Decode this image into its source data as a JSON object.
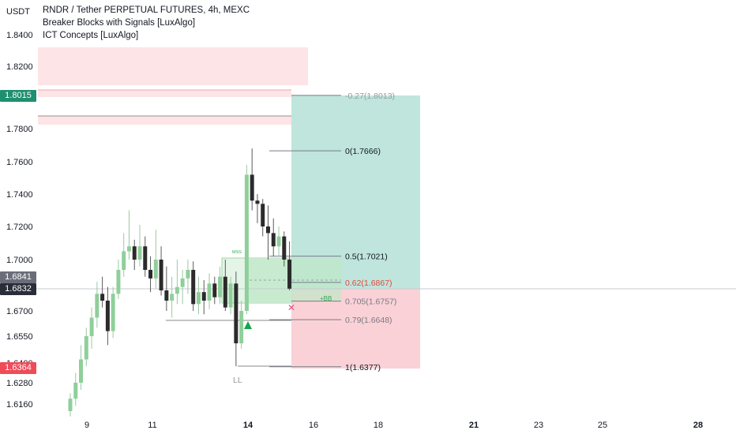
{
  "header": {
    "currency": "USDT",
    "title": "RNDR / Tether PERPETUAL FUTURES, 4h, MEXC",
    "indicators": [
      "Breaker Blocks with Signals [LuxAlgo]",
      "ICT Concepts [LuxAlgo]"
    ]
  },
  "price_axis": {
    "ticks": [
      "1.8400",
      "1.8200",
      "1.7800",
      "1.7600",
      "1.7400",
      "1.7200",
      "1.7000",
      "1.6700",
      "1.6550",
      "1.6400",
      "1.6280",
      "1.6160"
    ],
    "tags": [
      {
        "label": "1.8015",
        "color": "#1e8f6f"
      },
      {
        "label": "1.6841",
        "color": "#6b6e78"
      },
      {
        "label": "1.6832",
        "color": "#2a2e39"
      },
      {
        "label": "1.6364",
        "color": "#ef4b59"
      }
    ]
  },
  "time_axis": {
    "labels": [
      "9",
      "11",
      "14",
      "16",
      "18",
      "21",
      "23",
      "25",
      "28"
    ],
    "bold": [
      "14",
      "21",
      "28"
    ]
  },
  "annotations": {
    "ll": "LL",
    "bb": "+BB",
    "mss": "MSS"
  },
  "fib_levels": [
    {
      "label": "-0.27(1.8013)",
      "price": 1.8013,
      "color": "#9598a1"
    },
    {
      "label": "0(1.7666)",
      "price": 1.7666,
      "color": "#131722"
    },
    {
      "label": "0.5(1.7021)",
      "price": 1.7021,
      "color": "#131722"
    },
    {
      "label": "0.62(1.6867)",
      "price": 1.6867,
      "color": "#e04a3a"
    },
    {
      "label": "0.705(1.6757)",
      "price": 1.6757,
      "color": "#787b86"
    },
    {
      "label": "0.79(1.6648)",
      "price": 1.6648,
      "color": "#787b86"
    },
    {
      "label": "1(1.6377)",
      "price": 1.6377,
      "color": "#131722"
    }
  ],
  "colors": {
    "bull": "#8fcf9a",
    "bear": "#2b2b2b",
    "target_zone": "#bfe5dc",
    "stop_zone": "#fad1d6",
    "breaker_zone": "#fde4e6",
    "bb_zone": "#c8ebcf"
  },
  "chart_data": {
    "type": "candlestick",
    "symbol": "RNDR / Tether PERPETUAL FUTURES",
    "interval": "4h",
    "exchange": "MEXC",
    "ylim": [
      1.605,
      1.848
    ],
    "candles": [
      {
        "o": 1.612,
        "h": 1.622,
        "l": 1.609,
        "c": 1.619
      },
      {
        "o": 1.619,
        "h": 1.634,
        "l": 1.615,
        "c": 1.628
      },
      {
        "o": 1.628,
        "h": 1.65,
        "l": 1.624,
        "c": 1.642
      },
      {
        "o": 1.642,
        "h": 1.66,
        "l": 1.638,
        "c": 1.655
      },
      {
        "o": 1.655,
        "h": 1.672,
        "l": 1.648,
        "c": 1.666
      },
      {
        "o": 1.666,
        "h": 1.687,
        "l": 1.66,
        "c": 1.68
      },
      {
        "o": 1.68,
        "h": 1.69,
        "l": 1.672,
        "c": 1.676
      },
      {
        "o": 1.676,
        "h": 1.684,
        "l": 1.65,
        "c": 1.658
      },
      {
        "o": 1.658,
        "h": 1.684,
        "l": 1.654,
        "c": 1.68
      },
      {
        "o": 1.68,
        "h": 1.7,
        "l": 1.677,
        "c": 1.694
      },
      {
        "o": 1.694,
        "h": 1.716,
        "l": 1.69,
        "c": 1.705
      },
      {
        "o": 1.705,
        "h": 1.73,
        "l": 1.7,
        "c": 1.708
      },
      {
        "o": 1.708,
        "h": 1.712,
        "l": 1.694,
        "c": 1.7
      },
      {
        "o": 1.7,
        "h": 1.721,
        "l": 1.696,
        "c": 1.708
      },
      {
        "o": 1.708,
        "h": 1.714,
        "l": 1.69,
        "c": 1.694
      },
      {
        "o": 1.694,
        "h": 1.702,
        "l": 1.681,
        "c": 1.689
      },
      {
        "o": 1.689,
        "h": 1.718,
        "l": 1.683,
        "c": 1.7
      },
      {
        "o": 1.7,
        "h": 1.708,
        "l": 1.679,
        "c": 1.682
      },
      {
        "o": 1.682,
        "h": 1.696,
        "l": 1.67,
        "c": 1.676
      },
      {
        "o": 1.676,
        "h": 1.69,
        "l": 1.666,
        "c": 1.68
      },
      {
        "o": 1.68,
        "h": 1.7,
        "l": 1.674,
        "c": 1.684
      },
      {
        "o": 1.684,
        "h": 1.694,
        "l": 1.674,
        "c": 1.689
      },
      {
        "o": 1.689,
        "h": 1.7,
        "l": 1.68,
        "c": 1.694
      },
      {
        "o": 1.694,
        "h": 1.699,
        "l": 1.67,
        "c": 1.674
      },
      {
        "o": 1.674,
        "h": 1.69,
        "l": 1.668,
        "c": 1.681
      },
      {
        "o": 1.681,
        "h": 1.688,
        "l": 1.668,
        "c": 1.676
      },
      {
        "o": 1.676,
        "h": 1.692,
        "l": 1.671,
        "c": 1.686
      },
      {
        "o": 1.686,
        "h": 1.69,
        "l": 1.674,
        "c": 1.678
      },
      {
        "o": 1.678,
        "h": 1.696,
        "l": 1.674,
        "c": 1.69
      },
      {
        "o": 1.69,
        "h": 1.7,
        "l": 1.67,
        "c": 1.672
      },
      {
        "o": 1.672,
        "h": 1.69,
        "l": 1.668,
        "c": 1.686
      },
      {
        "o": 1.686,
        "h": 1.693,
        "l": 1.638,
        "c": 1.651
      },
      {
        "o": 1.651,
        "h": 1.676,
        "l": 1.648,
        "c": 1.67
      },
      {
        "o": 1.67,
        "h": 1.758,
        "l": 1.668,
        "c": 1.752
      },
      {
        "o": 1.752,
        "h": 1.768,
        "l": 1.73,
        "c": 1.736
      },
      {
        "o": 1.736,
        "h": 1.74,
        "l": 1.722,
        "c": 1.734
      },
      {
        "o": 1.734,
        "h": 1.737,
        "l": 1.714,
        "c": 1.72
      },
      {
        "o": 1.72,
        "h": 1.733,
        "l": 1.7,
        "c": 1.716
      },
      {
        "o": 1.716,
        "h": 1.725,
        "l": 1.702,
        "c": 1.708
      },
      {
        "o": 1.708,
        "h": 1.72,
        "l": 1.702,
        "c": 1.714
      },
      {
        "o": 1.714,
        "h": 1.717,
        "l": 1.696,
        "c": 1.7
      },
      {
        "o": 1.7,
        "h": 1.711,
        "l": 1.682,
        "c": 1.683
      }
    ]
  }
}
